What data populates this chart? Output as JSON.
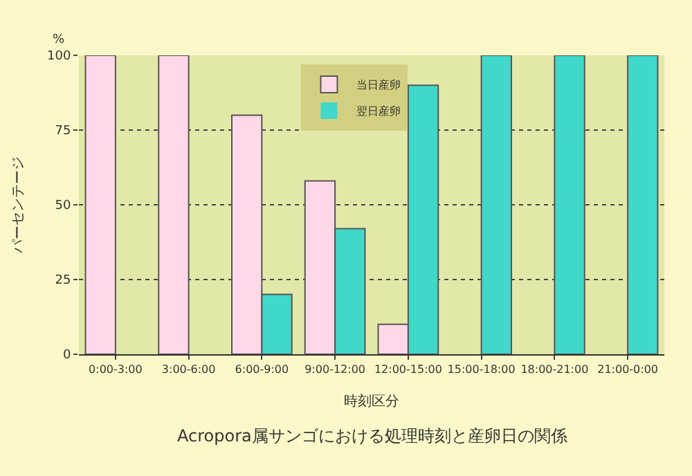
{
  "chart_data": {
    "type": "bar",
    "title": "Acropora属サンゴにおける処理時刻と産卵日の関係",
    "xlabel": "時刻区分",
    "ylabel": "パーセンテージ",
    "annotations": [
      "%"
    ],
    "categories": [
      "0:00-3:00",
      "3:00-6:00",
      "6:00-9:00",
      "9:00-12:00",
      "12:00-15:00",
      "15:00-18:00",
      "18:00-21:00",
      "21:00-0:00"
    ],
    "series": [
      {
        "name": "当日産卵",
        "color": "#ffd8e8",
        "values": [
          100,
          100,
          80,
          58,
          10,
          0,
          0,
          0
        ]
      },
      {
        "name": "翌日産卵",
        "color": "#40d8c8",
        "values": [
          0,
          0,
          20,
          42,
          90,
          100,
          100,
          100
        ]
      }
    ],
    "ylim": [
      0,
      100
    ],
    "yticks": [
      0,
      25,
      50,
      75,
      100
    ],
    "grid": "y",
    "legend": "top"
  }
}
